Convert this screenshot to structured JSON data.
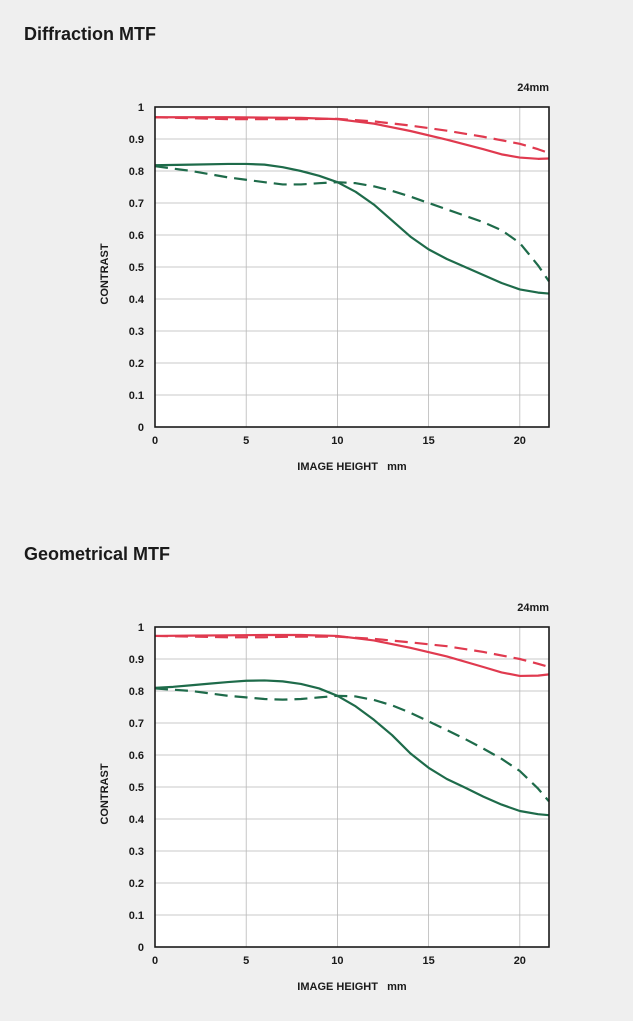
{
  "page": {
    "sections": [
      {
        "title": "Diffraction MTF"
      },
      {
        "title": "Geometrical MTF"
      }
    ]
  },
  "chart_data": [
    {
      "type": "line",
      "title": "Diffraction MTF",
      "subtitle": "24mm",
      "xlabel": "IMAGE HEIGHT   mm",
      "ylabel": "CONTRAST",
      "xlim": [
        0,
        21.6
      ],
      "ylim": [
        0,
        1
      ],
      "xticks": [
        0,
        5,
        10,
        15,
        20
      ],
      "yticks": [
        0,
        0.1,
        0.2,
        0.3,
        0.4,
        0.5,
        0.6,
        0.7,
        0.8,
        0.9,
        1
      ],
      "ytick_labels": [
        "0",
        "0.1",
        "0.2",
        "0.3",
        "0.4",
        "0.5",
        "0.6",
        "0.7",
        "0.8",
        "0.9",
        "1"
      ],
      "grid": true,
      "series": [
        {
          "color": "#e03a4f",
          "style": "solid",
          "x": [
            0,
            2,
            4,
            6,
            8,
            10,
            12,
            14,
            16,
            18,
            19,
            20,
            21,
            21.6
          ],
          "y": [
            0.968,
            0.968,
            0.968,
            0.967,
            0.966,
            0.962,
            0.948,
            0.925,
            0.898,
            0.868,
            0.852,
            0.842,
            0.838,
            0.839
          ]
        },
        {
          "color": "#e03a4f",
          "style": "dashed",
          "x": [
            0,
            2,
            4,
            6,
            8,
            10,
            12,
            14,
            16,
            18,
            20,
            21,
            21.6
          ],
          "y": [
            0.968,
            0.965,
            0.962,
            0.962,
            0.962,
            0.963,
            0.955,
            0.942,
            0.926,
            0.907,
            0.885,
            0.868,
            0.856
          ]
        },
        {
          "color": "#1e6b4a",
          "style": "solid",
          "x": [
            0,
            2,
            4,
            5,
            6,
            7,
            8,
            9,
            10,
            11,
            12,
            13,
            14,
            15,
            16,
            17,
            18,
            19,
            20,
            21,
            21.6
          ],
          "y": [
            0.818,
            0.82,
            0.822,
            0.822,
            0.82,
            0.812,
            0.8,
            0.785,
            0.765,
            0.735,
            0.695,
            0.645,
            0.595,
            0.555,
            0.525,
            0.5,
            0.475,
            0.45,
            0.43,
            0.42,
            0.417
          ]
        },
        {
          "color": "#1e6b4a",
          "style": "dashed",
          "x": [
            0,
            2,
            4,
            6,
            7,
            8,
            9,
            10,
            11,
            12,
            13,
            14,
            15,
            16,
            17,
            18,
            19,
            20,
            21,
            21.6
          ],
          "y": [
            0.815,
            0.8,
            0.78,
            0.765,
            0.758,
            0.758,
            0.762,
            0.765,
            0.762,
            0.752,
            0.738,
            0.72,
            0.7,
            0.68,
            0.66,
            0.64,
            0.615,
            0.575,
            0.505,
            0.455
          ]
        }
      ]
    },
    {
      "type": "line",
      "title": "Geometrical MTF",
      "subtitle": "24mm",
      "xlabel": "IMAGE HEIGHT   mm",
      "ylabel": "CONTRAST",
      "xlim": [
        0,
        21.6
      ],
      "ylim": [
        0,
        1
      ],
      "xticks": [
        0,
        5,
        10,
        15,
        20
      ],
      "yticks": [
        0,
        0.1,
        0.2,
        0.3,
        0.4,
        0.5,
        0.6,
        0.7,
        0.8,
        0.9,
        1
      ],
      "ytick_labels": [
        "0",
        "0.1",
        "0.2",
        "0.3",
        "0.4",
        "0.5",
        "0.6",
        "0.7",
        "0.8",
        "0.9",
        "1"
      ],
      "grid": true,
      "series": [
        {
          "color": "#e03a4f",
          "style": "solid",
          "x": [
            0,
            2,
            4,
            6,
            8,
            10,
            12,
            14,
            16,
            18,
            19,
            20,
            21,
            21.6
          ],
          "y": [
            0.972,
            0.973,
            0.974,
            0.975,
            0.975,
            0.972,
            0.958,
            0.935,
            0.908,
            0.875,
            0.858,
            0.847,
            0.848,
            0.852
          ]
        },
        {
          "color": "#e03a4f",
          "style": "dashed",
          "x": [
            0,
            2,
            4,
            6,
            8,
            10,
            12,
            14,
            16,
            18,
            20,
            21,
            21.6
          ],
          "y": [
            0.972,
            0.97,
            0.968,
            0.968,
            0.97,
            0.97,
            0.963,
            0.952,
            0.94,
            0.922,
            0.9,
            0.885,
            0.875
          ]
        },
        {
          "color": "#1e6b4a",
          "style": "solid",
          "x": [
            0,
            1,
            2,
            3,
            4,
            5,
            6,
            7,
            8,
            9,
            10,
            11,
            12,
            13,
            14,
            15,
            16,
            17,
            18,
            19,
            20,
            21,
            21.6
          ],
          "y": [
            0.81,
            0.813,
            0.818,
            0.823,
            0.828,
            0.832,
            0.833,
            0.83,
            0.822,
            0.808,
            0.785,
            0.752,
            0.71,
            0.662,
            0.605,
            0.56,
            0.525,
            0.498,
            0.47,
            0.445,
            0.425,
            0.415,
            0.412
          ]
        },
        {
          "color": "#1e6b4a",
          "style": "dashed",
          "x": [
            0,
            2,
            4,
            6,
            7,
            8,
            9,
            10,
            11,
            12,
            13,
            14,
            15,
            16,
            17,
            18,
            19,
            20,
            21,
            21.6
          ],
          "y": [
            0.808,
            0.8,
            0.785,
            0.775,
            0.773,
            0.775,
            0.78,
            0.785,
            0.783,
            0.772,
            0.755,
            0.732,
            0.705,
            0.678,
            0.65,
            0.62,
            0.588,
            0.55,
            0.495,
            0.455
          ]
        }
      ]
    }
  ]
}
